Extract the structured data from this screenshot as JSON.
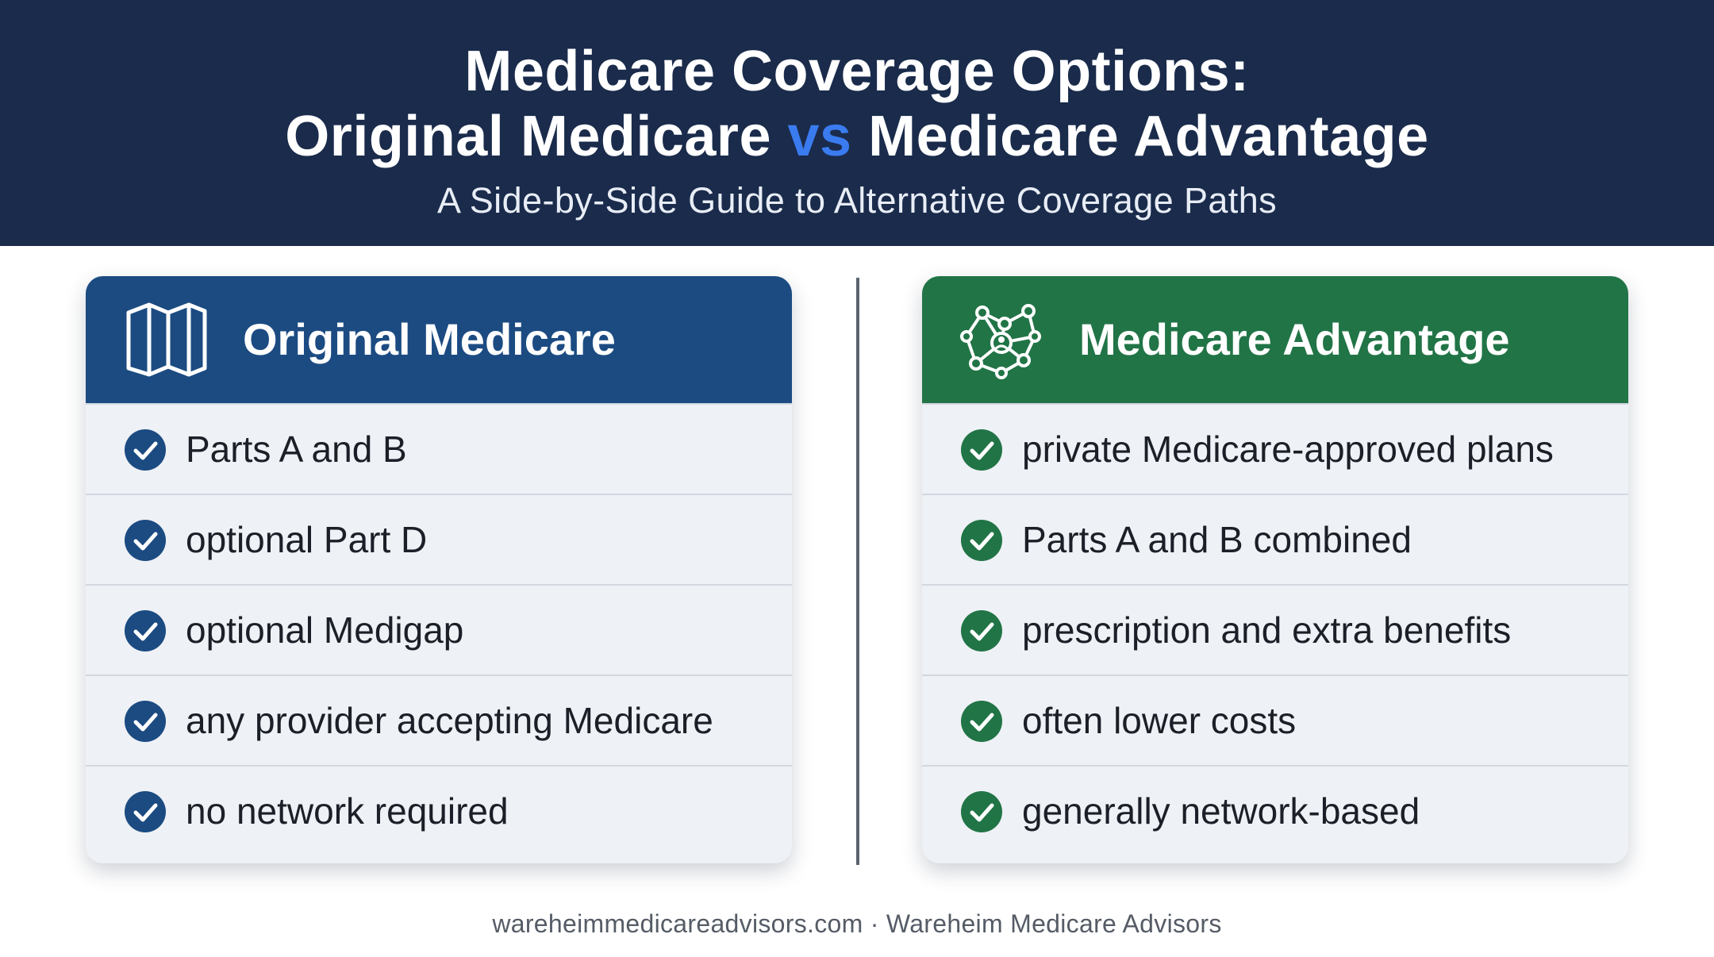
{
  "header": {
    "title_line1": "Medicare Coverage Options:",
    "title_line2_part1": "Original Medicare",
    "title_line2_vs": "vs",
    "title_line2_part2": "Medicare Advantage",
    "subtitle": "A Side-by-Side Guide to Alternative Coverage Paths"
  },
  "colors": {
    "header_bg": "#1a2b4b",
    "vs_accent": "#3a7bf0",
    "original_accent": "#1c4b82",
    "advantage_accent": "#217446",
    "card_bg": "#eef1f5"
  },
  "original": {
    "icon": "map-icon",
    "title": "Original Medicare",
    "items": [
      "Parts A and B",
      "optional Part D",
      "optional Medigap",
      "any provider accepting Medicare",
      "no network required"
    ]
  },
  "advantage": {
    "icon": "network-icon",
    "title": "Medicare Advantage",
    "items": [
      "private Medicare-approved plans",
      "Parts A and B combined",
      "prescription and extra benefits",
      "often lower costs",
      "generally network-based"
    ]
  },
  "footer": {
    "text": "wareheimmedicareadvisors.com · Wareheim Medicare Advisors"
  }
}
